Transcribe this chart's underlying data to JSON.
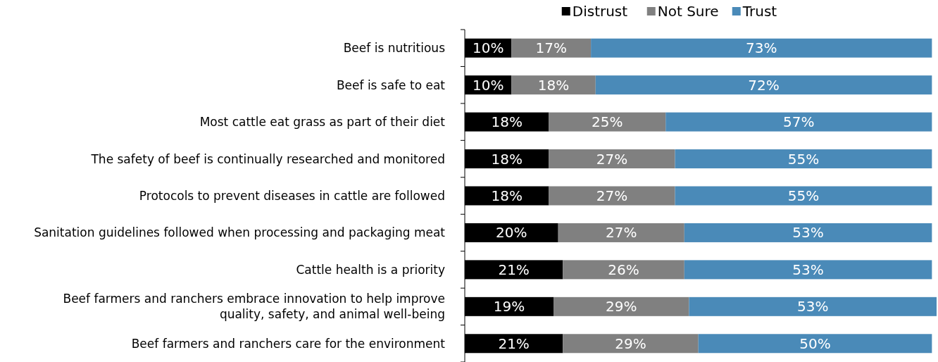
{
  "chart_data": {
    "type": "bar",
    "orientation": "horizontal",
    "stacked": true,
    "tick_labels": "y",
    "legend": "top",
    "xlim": [
      0,
      101
    ],
    "categories": [
      "Beef is nutritious",
      "Beef is safe to eat",
      "Most cattle eat grass as part of their diet",
      "The safety of beef is continually researched and monitored",
      "Protocols to prevent diseases in cattle are followed",
      "Sanitation guidelines followed when processing and packaging meat",
      "Cattle health is a priority",
      "Beef farmers and ranchers embrace innovation to help improve quality, safety, and animal well-being",
      "Beef farmers and ranchers care for the environment"
    ],
    "series": [
      {
        "name": "Distrust",
        "color": "#000000",
        "values": [
          10,
          10,
          18,
          18,
          18,
          20,
          21,
          19,
          21
        ],
        "value_labels": [
          "10%",
          "10%",
          "18%",
          "18%",
          "18%",
          "20%",
          "21%",
          "19%",
          "21%"
        ]
      },
      {
        "name": "Not Sure",
        "color": "#808080",
        "values": [
          17,
          18,
          25,
          27,
          27,
          27,
          26,
          29,
          29
        ],
        "value_labels": [
          "17%",
          "18%",
          "25%",
          "27%",
          "27%",
          "27%",
          "26%",
          "29%",
          "29%"
        ]
      },
      {
        "name": "Trust",
        "color": "#4a8ab8",
        "values": [
          73,
          72,
          57,
          55,
          55,
          53,
          53,
          53,
          50
        ],
        "value_labels": [
          "73%",
          "72%",
          "57%",
          "55%",
          "55%",
          "53%",
          "53%",
          "53%",
          "50%"
        ]
      }
    ]
  }
}
